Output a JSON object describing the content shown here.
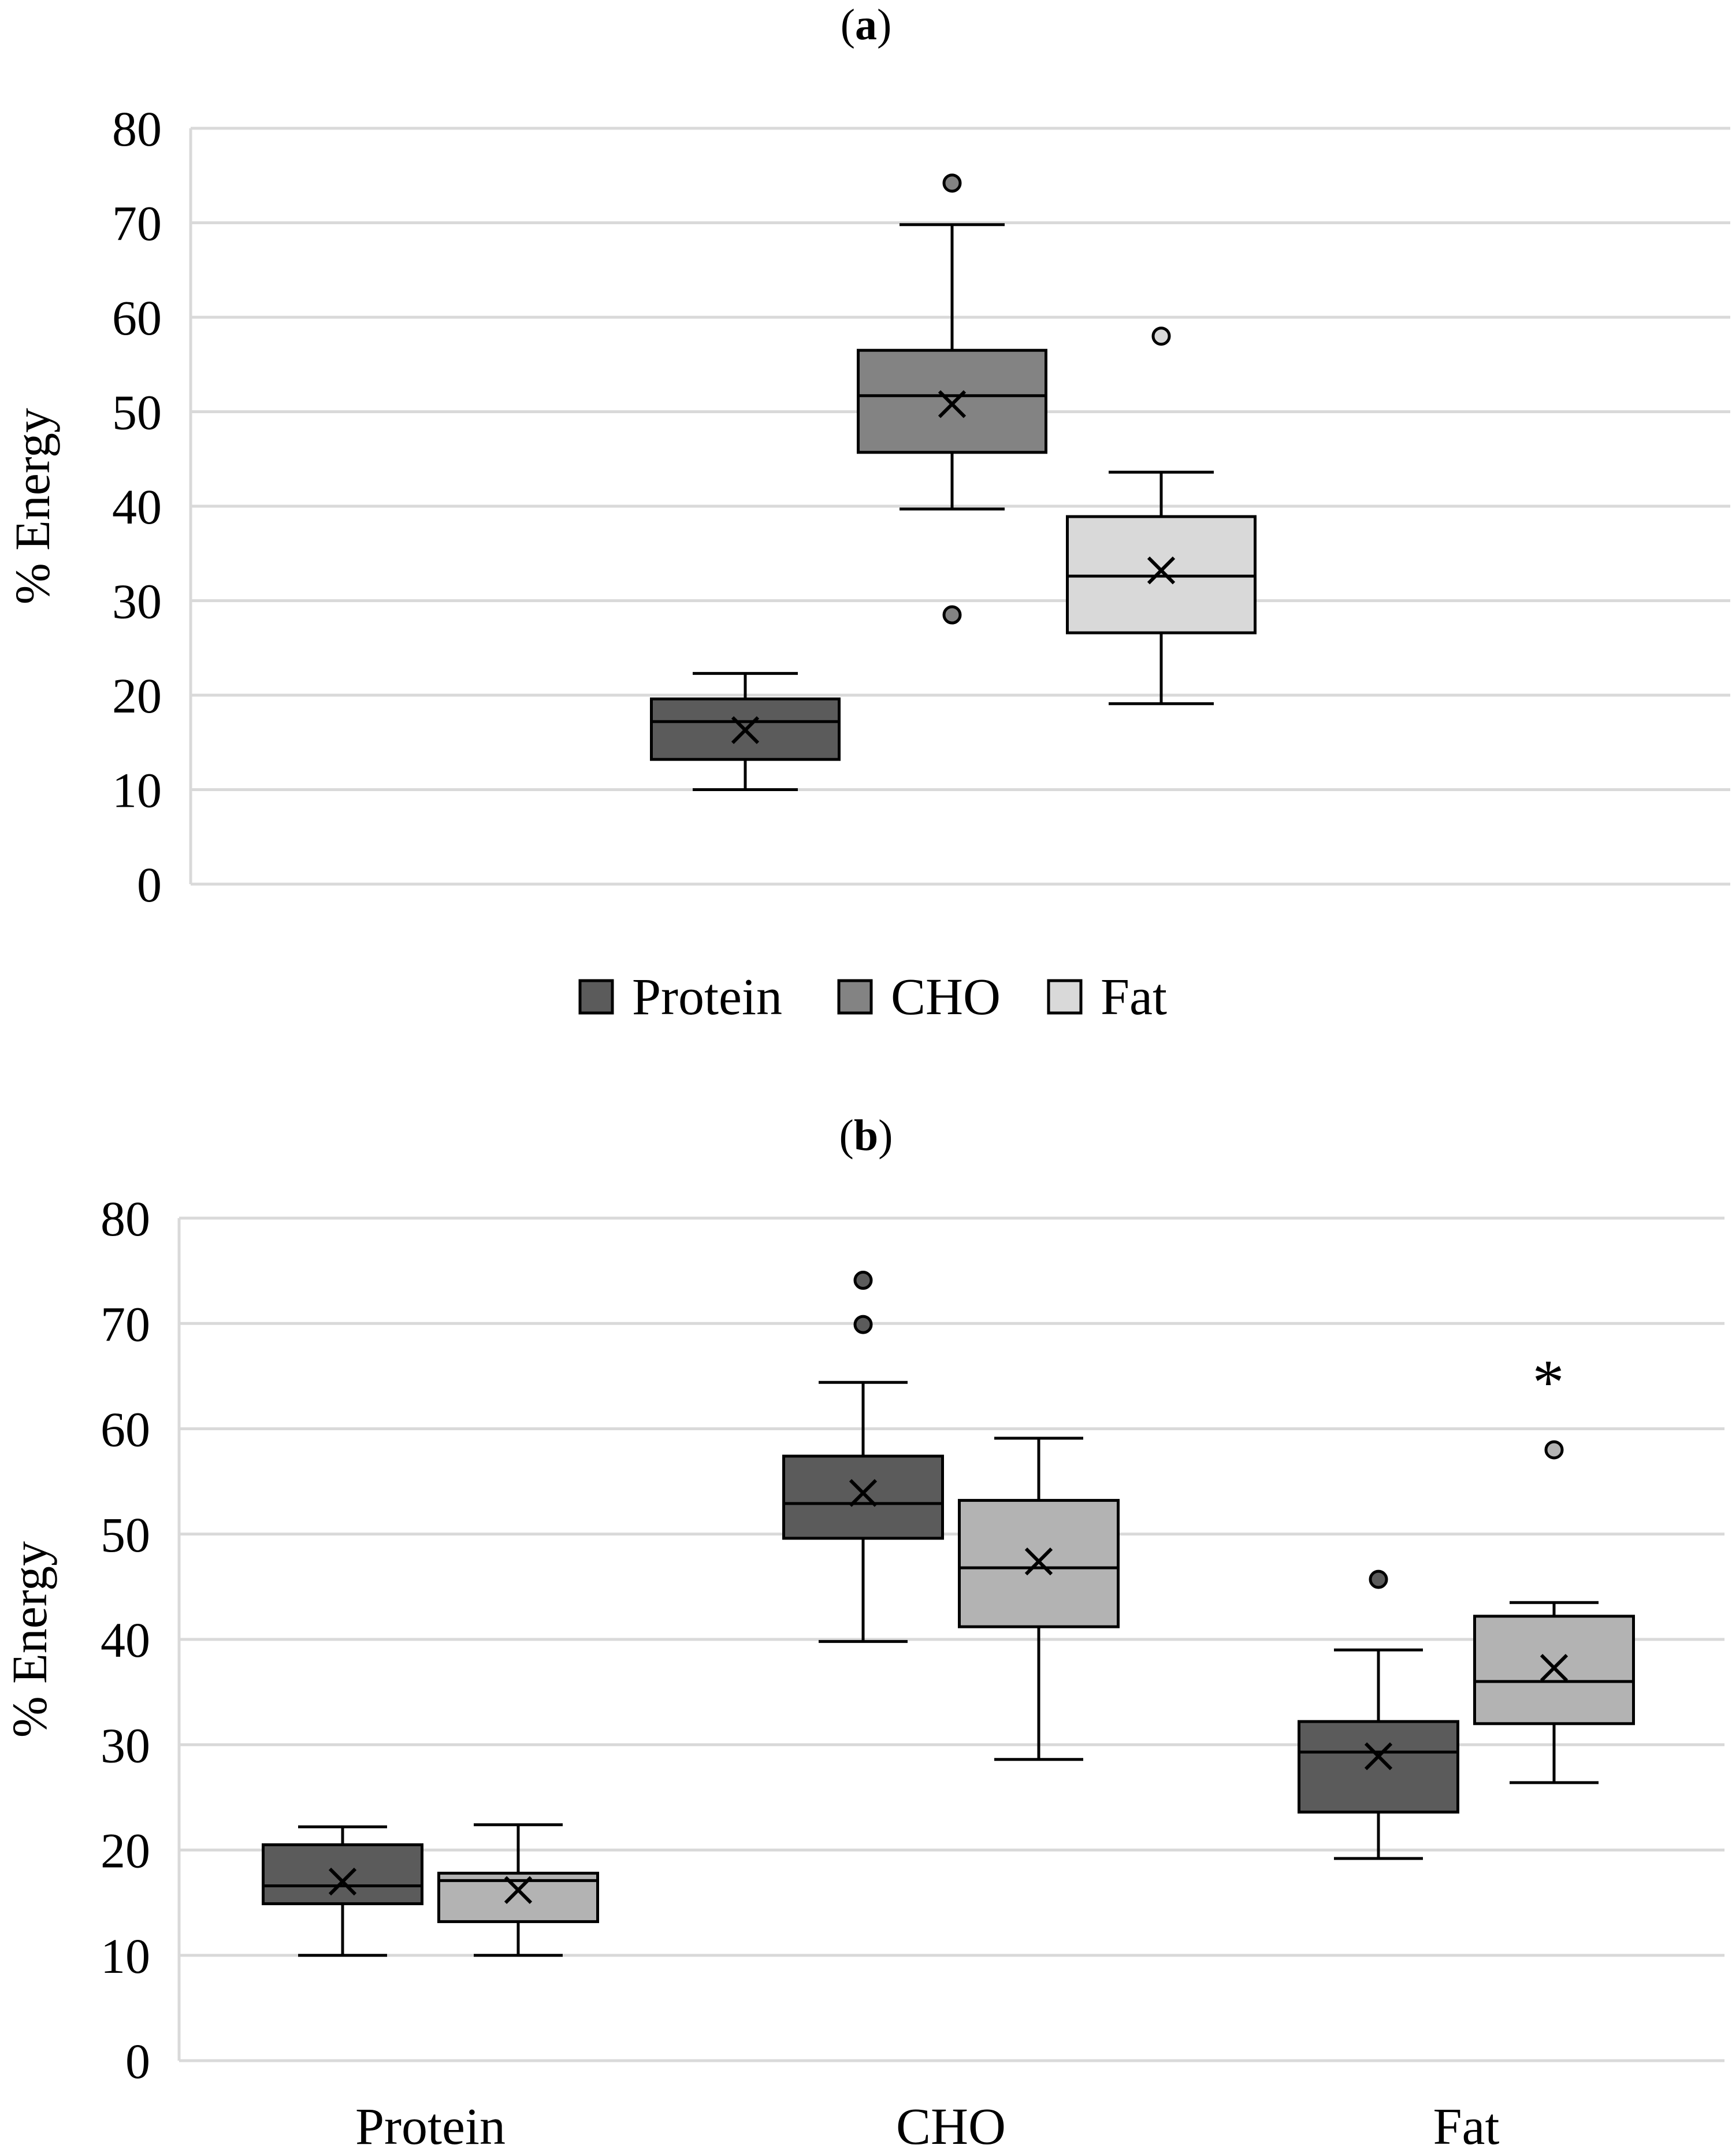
{
  "chart_data": [
    {
      "panel_label": "a",
      "type": "box",
      "ylabel": "% Energy",
      "ylim": [
        0,
        80
      ],
      "yticks": [
        0,
        10,
        20,
        30,
        40,
        50,
        60,
        70,
        80
      ],
      "grid": true,
      "legend": {
        "position": "bottom",
        "entries": [
          "Protein",
          "CHO",
          "Fat"
        ]
      },
      "series": [
        {
          "name": "Protein",
          "color": "#5b5b5b",
          "min": 10,
          "q1": 13.2,
          "median": 17.2,
          "q3": 19.6,
          "max": 22.3,
          "mean": 16.3,
          "outliers": []
        },
        {
          "name": "CHO",
          "color": "#838383",
          "min": 39.7,
          "q1": 45.7,
          "median": 51.7,
          "q3": 56.5,
          "max": 69.8,
          "mean": 50.8,
          "outliers": [
            74.2,
            28.5
          ]
        },
        {
          "name": "Fat",
          "color": "#d9d9d9",
          "min": 19.1,
          "q1": 26.6,
          "median": 32.6,
          "q3": 38.9,
          "max": 43.6,
          "mean": 33.2,
          "outliers": [
            58
          ]
        }
      ]
    },
    {
      "panel_label": "b",
      "type": "box",
      "ylabel": "% Energy",
      "ylim": [
        0,
        80
      ],
      "yticks": [
        0,
        10,
        20,
        30,
        40,
        50,
        60,
        70,
        80
      ],
      "grid": true,
      "categories": [
        "Protein",
        "CHO",
        "Fat"
      ],
      "series": [
        {
          "color": "#5b5b5b",
          "boxes": [
            {
              "category": "Protein",
              "min": 10,
              "q1": 14.9,
              "median": 16.6,
              "q3": 20.5,
              "max": 22.2,
              "mean": 17.0,
              "outliers": []
            },
            {
              "category": "CHO",
              "min": 39.8,
              "q1": 49.6,
              "median": 52.9,
              "q3": 57.4,
              "max": 64.4,
              "mean": 53.9,
              "outliers": [
                74.1,
                69.9
              ]
            },
            {
              "category": "Fat",
              "min": 19.2,
              "q1": 23.6,
              "median": 29.3,
              "q3": 32.2,
              "max": 39.0,
              "mean": 28.9,
              "outliers": [
                45.7
              ]
            }
          ]
        },
        {
          "color": "#b3b3b3",
          "boxes": [
            {
              "category": "Protein",
              "min": 10,
              "q1": 13.2,
              "median": 17.1,
              "q3": 17.8,
              "max": 22.4,
              "mean": 16.2,
              "outliers": []
            },
            {
              "category": "CHO",
              "min": 28.6,
              "q1": 41.2,
              "median": 46.8,
              "q3": 53.2,
              "max": 59.1,
              "mean": 47.4,
              "outliers": []
            },
            {
              "category": "Fat",
              "min": 26.4,
              "q1": 32.0,
              "median": 36.0,
              "q3": 42.2,
              "max": 43.5,
              "mean": 37.3,
              "outliers": [
                58.0
              ],
              "annotation": "*"
            }
          ]
        }
      ]
    }
  ]
}
